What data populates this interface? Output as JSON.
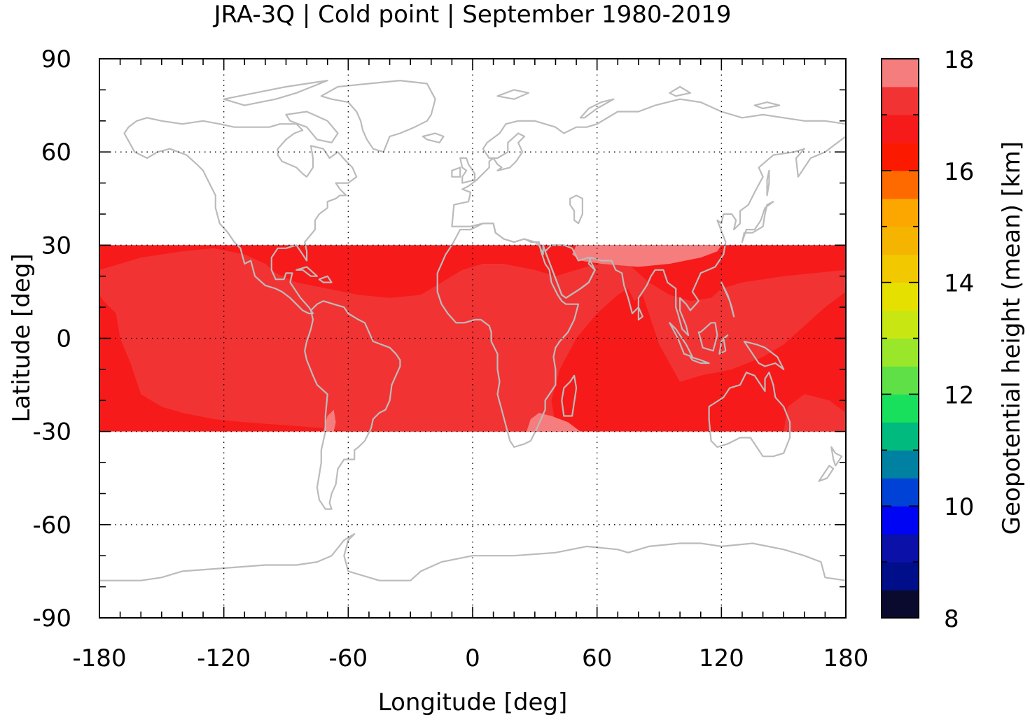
{
  "title": "JRA-3Q | Cold point | September 1980-2019",
  "chart_data": {
    "type": "heatmap",
    "title": "JRA-3Q | Cold point | September 1980-2019",
    "xlabel": "Longitude [deg]",
    "ylabel": "Latitude [deg]",
    "xlim": [
      -180,
      180
    ],
    "ylim": [
      -90,
      90
    ],
    "x_ticks": [
      "-180",
      "-120",
      "-60",
      "0",
      "60",
      "120",
      "180"
    ],
    "y_ticks": [
      "90",
      "60",
      "30",
      "0",
      "-30",
      "-60",
      "-90"
    ],
    "grid": true,
    "data_lat_range": [
      -30,
      30
    ],
    "colorbar": {
      "label": "Geopotential height (mean) [km]",
      "range": [
        8,
        18
      ],
      "step": 0.5,
      "ticks": [
        "8",
        "10",
        "12",
        "14",
        "16",
        "18"
      ],
      "colors": [
        "#0a0a2e",
        "#000e8a",
        "#0a10a8",
        "#0004f5",
        "#0042d6",
        "#0081a2",
        "#00ba7e",
        "#18e05d",
        "#5ee046",
        "#9ae62a",
        "#c8e612",
        "#e6e000",
        "#f2c800",
        "#f5b400",
        "#fba700",
        "#ff6a00",
        "#fb1a00",
        "#f71a1a",
        "#f23333",
        "#f57d7d",
        "#ffcccc"
      ]
    },
    "field_regions": [
      {
        "name": "base",
        "value": 16.3,
        "color": "#f71a1a"
      },
      {
        "name": "central-tropics",
        "value": 16.8,
        "color": "#f23333"
      },
      {
        "name": "tibet-max",
        "value": 17.3,
        "color": "#f57d7d"
      },
      {
        "name": "south-america-tip",
        "value": 17.3,
        "color": "#f57d7d"
      },
      {
        "name": "south-africa-tip",
        "value": 17.3,
        "color": "#f57d7d"
      }
    ],
    "coastline_color": "#bbbbbb"
  }
}
